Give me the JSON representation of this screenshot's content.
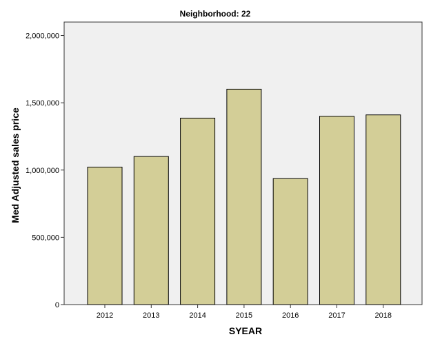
{
  "chart_data": {
    "type": "bar",
    "title": "Neighborhood: 22",
    "xlabel": "SYEAR",
    "ylabel": "Med Adjusted sales price",
    "categories": [
      "2012",
      "2013",
      "2014",
      "2015",
      "2016",
      "2017",
      "2018"
    ],
    "values": [
      1022000,
      1101000,
      1386000,
      1601000,
      937000,
      1400000,
      1410000
    ],
    "ylim": [
      0,
      2100000
    ],
    "yticks": [
      0,
      500000,
      1000000,
      1500000,
      2000000
    ],
    "ytick_labels": [
      "0",
      "500,000",
      "1,000,000",
      "1,500,000",
      "2,000,000"
    ],
    "grid": false,
    "colors": {
      "bar": "#d3ce97",
      "plot_background": "#f0f0f0",
      "bar_border": "#000000"
    }
  }
}
